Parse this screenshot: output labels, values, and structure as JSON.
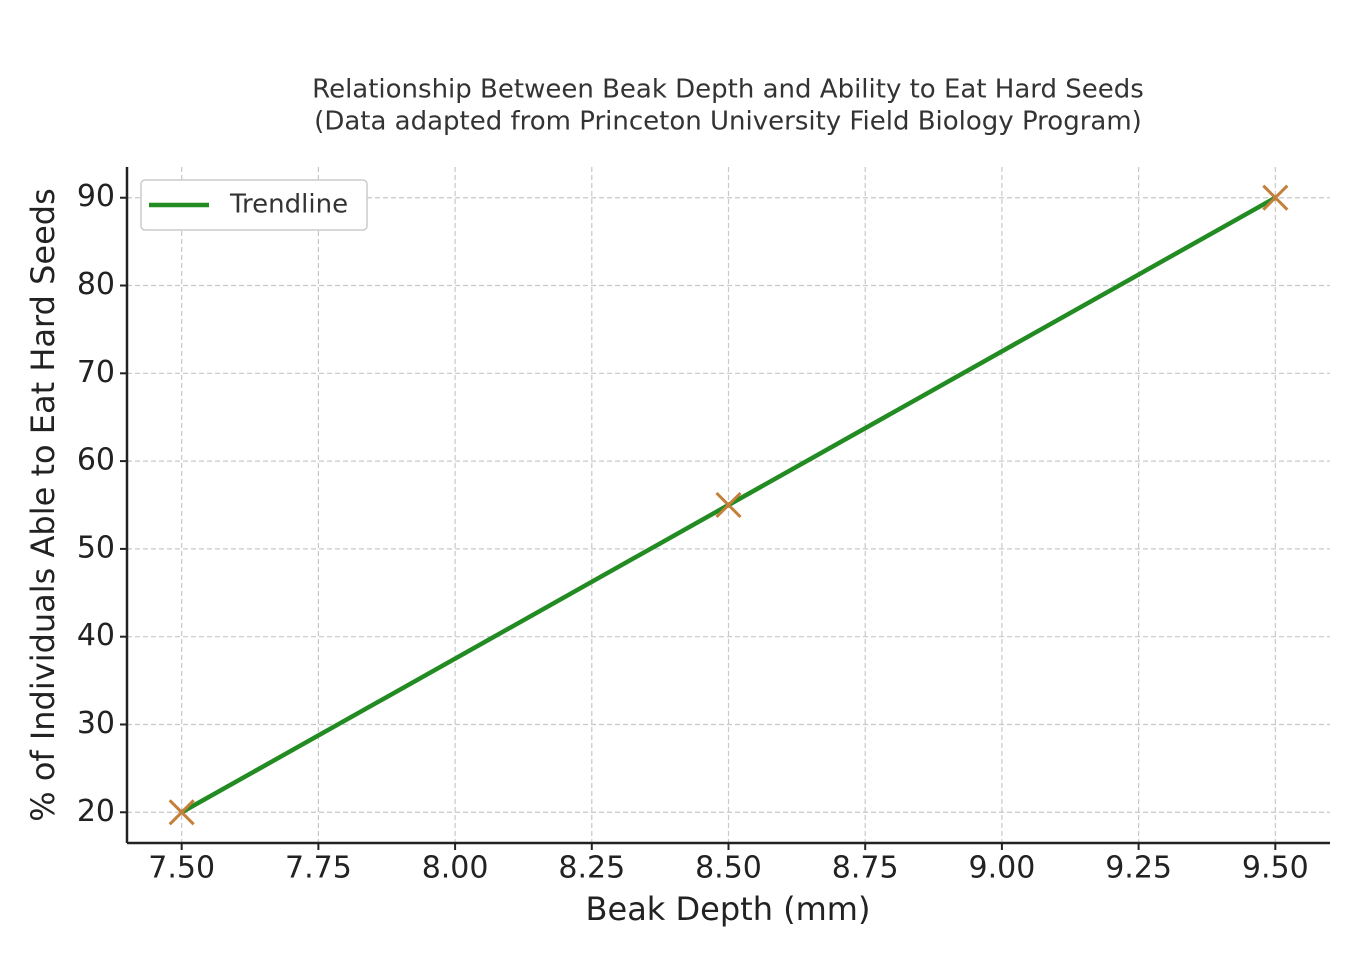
{
  "chart_data": {
    "type": "scatter",
    "title": "Relationship Between Beak Depth and Ability to Eat Hard Seeds",
    "subtitle": "(Data adapted from Princeton University Field Biology Program)",
    "x_label": "Beak Depth (mm)",
    "y_label": "% of Individuals Able to Eat Hard Seeds",
    "series": [
      {
        "type": "line",
        "name": "Trendline",
        "color": "#228b22",
        "x": [
          7.5,
          8.5,
          9.5
        ],
        "values": [
          20,
          55,
          90
        ]
      },
      {
        "type": "scatter",
        "color": "#c47f3a",
        "x": [
          7.5,
          8.5,
          9.5
        ],
        "values": [
          20,
          55,
          90
        ]
      }
    ],
    "xlim": [
      7.4,
      9.6
    ],
    "ylim": [
      16.5,
      93.5
    ],
    "xticks": [
      {
        "value": 7.5,
        "label": "7.50"
      },
      {
        "value": 7.75,
        "label": "7.75"
      },
      {
        "value": 8.0,
        "label": "8.00"
      },
      {
        "value": 8.25,
        "label": "8.25"
      },
      {
        "value": 8.5,
        "label": "8.50"
      },
      {
        "value": 8.75,
        "label": "8.75"
      },
      {
        "value": 9.0,
        "label": "9.00"
      },
      {
        "value": 9.25,
        "label": "9.25"
      },
      {
        "value": 9.5,
        "label": "9.50"
      }
    ],
    "yticks": [
      20,
      30,
      40,
      50,
      60,
      70,
      80,
      90
    ],
    "grid": true,
    "legend": "upper left"
  }
}
